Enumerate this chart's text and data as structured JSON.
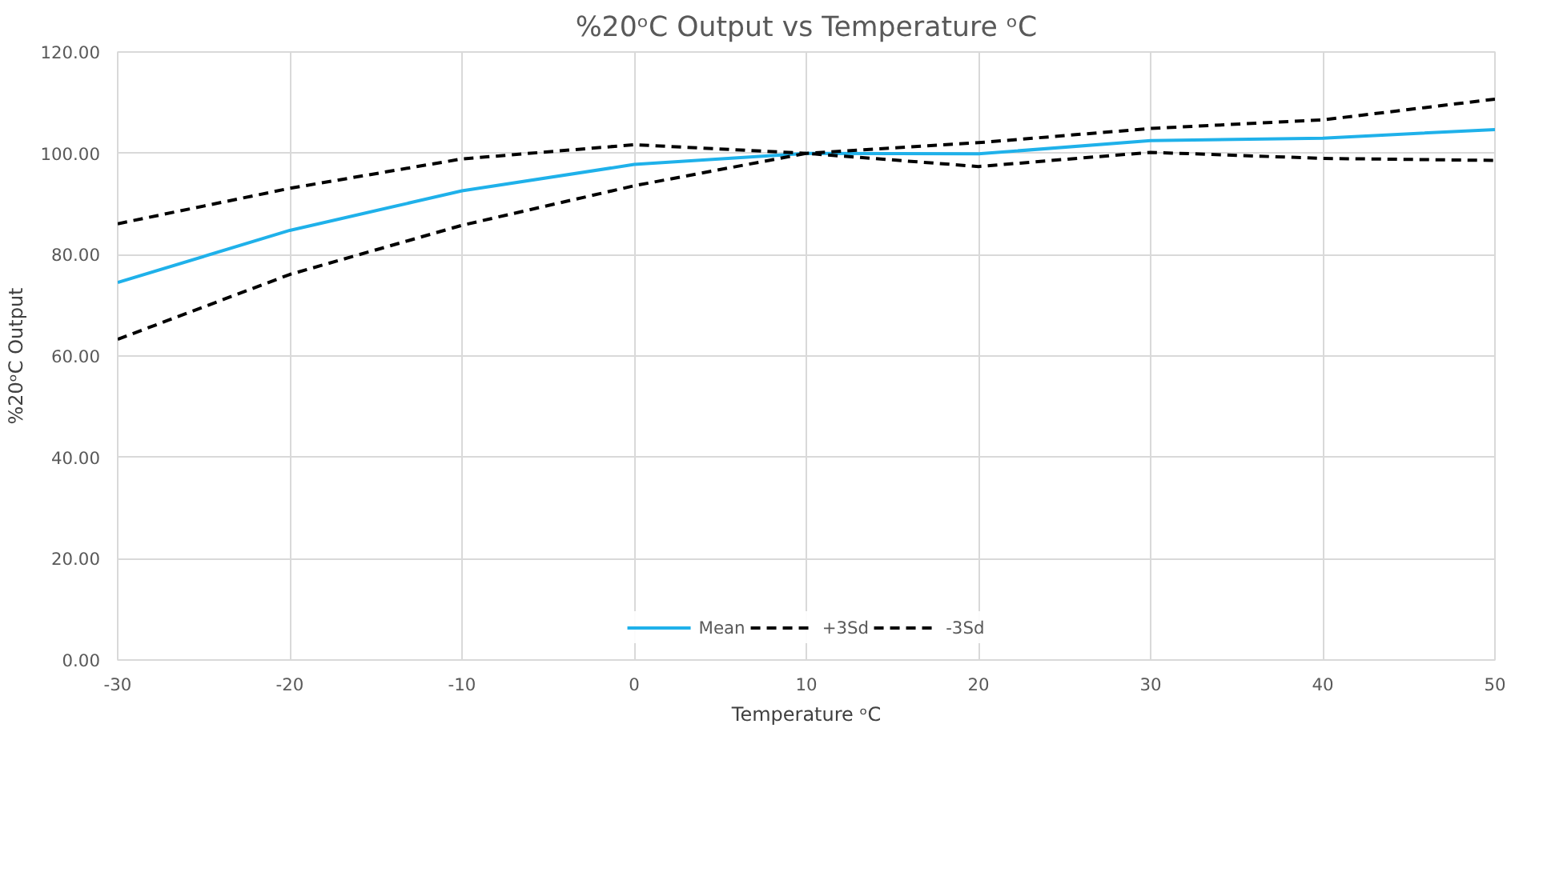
{
  "chart_data": {
    "type": "line",
    "title": "%20ᵒC Output vs Temperature ᵒC",
    "xlabel": "Temperature ᵒC",
    "ylabel": "%20ᵒC Output",
    "x": [
      -30,
      -20,
      -10,
      0,
      10,
      20,
      30,
      40,
      50
    ],
    "series": [
      {
        "name": "Mean",
        "color": "#1fb1ea",
        "line_style": "solid",
        "values": [
          74.5,
          84.8,
          92.6,
          97.8,
          100,
          99.9,
          102.5,
          103,
          104.7
        ]
      },
      {
        "name": "+3Sd",
        "color": "#000000",
        "line_style": "dashed",
        "values": [
          86.1,
          93.1,
          98.9,
          101.7,
          100,
          102.1,
          104.9,
          106.6,
          110.7
        ]
      },
      {
        "name": "-3Sd",
        "color": "#000000",
        "line_style": "dashed",
        "values": [
          63.3,
          76.1,
          85.8,
          93.6,
          100,
          97.4,
          100.2,
          99,
          98.6
        ]
      }
    ],
    "xlim": [
      -30,
      50
    ],
    "ylim": [
      0,
      120
    ],
    "xticks": [
      -30,
      -20,
      -10,
      0,
      10,
      20,
      30,
      40,
      50
    ],
    "yticks": [
      {
        "value": 0,
        "label": "0.00"
      },
      {
        "value": 20,
        "label": "20.00"
      },
      {
        "value": 40,
        "label": "40.00"
      },
      {
        "value": 60,
        "label": "60.00"
      },
      {
        "value": 80,
        "label": "80.00"
      },
      {
        "value": 100,
        "label": "100.00"
      },
      {
        "value": 120,
        "label": "120.00"
      }
    ],
    "grid": true,
    "legend": "bottom",
    "marker": "none"
  }
}
